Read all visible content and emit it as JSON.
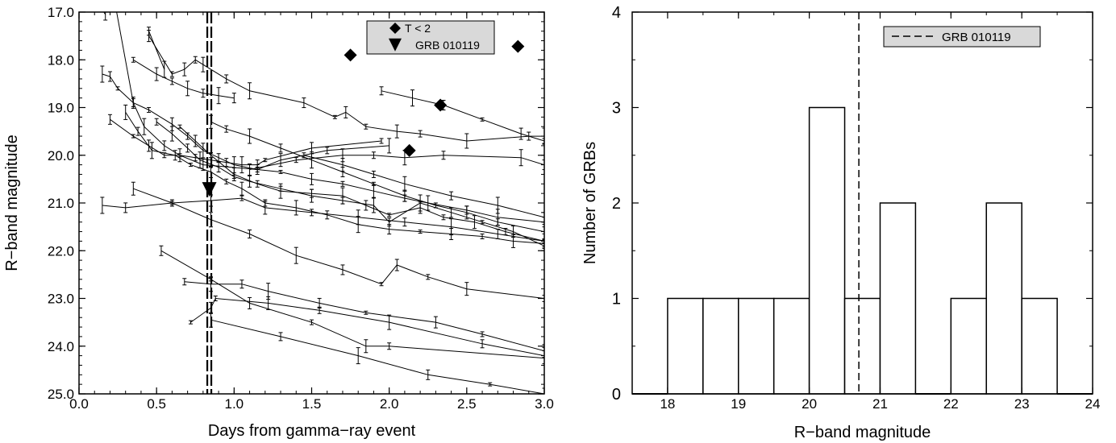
{
  "chart_data": [
    {
      "type": "line",
      "xlabel": "Days from gamma−ray event",
      "ylabel": "R−band magnitude",
      "xlim": [
        0.0,
        3.0
      ],
      "ylim": [
        17.0,
        25.0
      ],
      "y_inverted": true,
      "x_ticks": [
        "0.0",
        "0.5",
        "1.0",
        "1.5",
        "2.0",
        "2.5",
        "3.0"
      ],
      "y_ticks": [
        "17.0",
        "18.0",
        "19.0",
        "20.0",
        "21.0",
        "22.0",
        "23.0",
        "24.0",
        "25.0"
      ],
      "legend": {
        "placement": "top-right",
        "entries": [
          "T < 2",
          "GRB 010119"
        ]
      },
      "vline": {
        "x": 0.84,
        "style": "dashed",
        "label": "GRB 010119"
      },
      "series": [
        {
          "points": [
            [
              0.15,
              16.95
            ],
            [
              0.17,
              17.05
            ]
          ]
        },
        {
          "points": [
            [
              0.22,
              16.6
            ],
            [
              0.35,
              18.9
            ],
            [
              0.42,
              19.4
            ],
            [
              0.55,
              19.8
            ],
            [
              0.65,
              20.0
            ],
            [
              0.8,
              20.2
            ],
            [
              1.15,
              20.3
            ],
            [
              1.3,
              20.1
            ],
            [
              1.6,
              19.9
            ],
            [
              2.0,
              19.8
            ]
          ]
        },
        {
          "points": [
            [
              0.45,
              17.5
            ],
            [
              0.6,
              18.3
            ],
            [
              0.68,
              18.2
            ],
            [
              0.75,
              18.0
            ],
            [
              0.8,
              18.1
            ],
            [
              0.95,
              18.4
            ],
            [
              1.1,
              18.65
            ],
            [
              1.45,
              18.9
            ],
            [
              1.65,
              19.2
            ],
            [
              1.72,
              19.1
            ],
            [
              1.85,
              19.4
            ],
            [
              2.05,
              19.5
            ],
            [
              2.2,
              19.55
            ],
            [
              2.5,
              19.7
            ],
            [
              2.9,
              19.6
            ],
            [
              3.0,
              19.6
            ]
          ]
        },
        {
          "points": [
            [
              0.45,
              17.4
            ],
            [
              0.55,
              18.2
            ]
          ]
        },
        {
          "points": [
            [
              0.35,
              18.0
            ],
            [
              0.5,
              18.3
            ],
            [
              0.6,
              18.45
            ],
            [
              0.7,
              18.6
            ],
            [
              0.8,
              18.7
            ],
            [
              0.9,
              18.75
            ],
            [
              1.0,
              18.8
            ]
          ]
        },
        {
          "points": [
            [
              0.15,
              18.3
            ],
            [
              0.2,
              18.35
            ],
            [
              0.25,
              18.6
            ],
            [
              0.35,
              18.9
            ],
            [
              0.45,
              19.05
            ],
            [
              0.6,
              19.35
            ],
            [
              0.7,
              19.6
            ],
            [
              0.8,
              19.9
            ],
            [
              0.9,
              20.05
            ],
            [
              1.0,
              20.2
            ],
            [
              1.15,
              20.3
            ],
            [
              1.3,
              20.35
            ],
            [
              1.5,
              20.5
            ],
            [
              1.7,
              20.6
            ],
            [
              1.9,
              20.75
            ],
            [
              2.1,
              20.9
            ],
            [
              2.25,
              21.0
            ],
            [
              2.5,
              21.15
            ],
            [
              2.7,
              21.3
            ],
            [
              3.0,
              21.4
            ]
          ]
        },
        {
          "points": [
            [
              0.85,
              19.3
            ],
            [
              0.95,
              19.45
            ],
            [
              1.1,
              19.6
            ],
            [
              1.3,
              19.85
            ],
            [
              1.5,
              20.1
            ],
            [
              1.7,
              20.35
            ],
            [
              1.9,
              20.6
            ],
            [
              2.1,
              20.85
            ],
            [
              2.3,
              21.05
            ],
            [
              2.5,
              21.2
            ],
            [
              2.7,
              21.4
            ],
            [
              3.0,
              21.6
            ]
          ]
        },
        {
          "points": [
            [
              0.2,
              19.25
            ],
            [
              0.35,
              19.6
            ],
            [
              0.45,
              19.8
            ],
            [
              0.55,
              20.0
            ],
            [
              0.65,
              20.0
            ],
            [
              0.75,
              20.05
            ],
            [
              0.85,
              20.1
            ],
            [
              0.95,
              20.15
            ],
            [
              1.05,
              20.2
            ],
            [
              1.15,
              20.2
            ],
            [
              1.2,
              20.1
            ],
            [
              1.5,
              19.85
            ],
            [
              1.95,
              19.7
            ]
          ]
        },
        {
          "points": [
            [
              0.5,
              19.3
            ],
            [
              0.6,
              19.55
            ],
            [
              0.7,
              19.85
            ],
            [
              0.78,
              20.1
            ],
            [
              0.9,
              20.25
            ],
            [
              1.0,
              20.45
            ],
            [
              1.1,
              20.55
            ],
            [
              1.3,
              20.7
            ],
            [
              1.5,
              20.85
            ],
            [
              1.7,
              20.95
            ],
            [
              1.9,
              21.05
            ],
            [
              2.0,
              21.4
            ],
            [
              2.2,
              21.0
            ],
            [
              2.4,
              21.2
            ],
            [
              2.6,
              21.4
            ],
            [
              2.8,
              21.6
            ],
            [
              3.0,
              21.9
            ]
          ]
        },
        {
          "points": [
            [
              0.65,
              19.4
            ],
            [
              0.75,
              19.7
            ],
            [
              0.85,
              20.0
            ],
            [
              1.0,
              20.4
            ],
            [
              1.15,
              20.6
            ],
            [
              1.3,
              20.75
            ],
            [
              1.5,
              20.8
            ],
            [
              1.7,
              20.85
            ],
            [
              1.85,
              21.05
            ],
            [
              2.0,
              21.25
            ],
            [
              2.2,
              21.1
            ],
            [
              2.35,
              21.3
            ],
            [
              2.55,
              21.4
            ],
            [
              2.75,
              21.6
            ],
            [
              3.0,
              21.8
            ]
          ]
        },
        {
          "points": [
            [
              0.3,
              19.1
            ],
            [
              0.38,
              19.5
            ],
            [
              0.47,
              19.9
            ],
            [
              0.62,
              20.0
            ],
            [
              0.72,
              20.2
            ],
            [
              0.85,
              20.35
            ],
            [
              0.95,
              20.55
            ],
            [
              1.05,
              20.7
            ],
            [
              1.2,
              21.0
            ],
            [
              1.4,
              21.1
            ],
            [
              1.6,
              21.25
            ],
            [
              1.8,
              21.45
            ],
            [
              2.0,
              21.55
            ],
            [
              2.2,
              21.6
            ],
            [
              2.4,
              21.65
            ],
            [
              2.6,
              21.7
            ],
            [
              2.8,
              21.8
            ],
            [
              3.0,
              21.85
            ]
          ]
        },
        {
          "points": [
            [
              1.1,
              20.3
            ],
            [
              1.4,
              20.1
            ],
            [
              1.7,
              20.0
            ],
            [
              1.9,
              20.0
            ],
            [
              2.1,
              20.05
            ],
            [
              2.35,
              20.0
            ],
            [
              2.85,
              20.05
            ],
            [
              3.0,
              20.2
            ]
          ]
        },
        {
          "points": [
            [
              1.95,
              18.65
            ],
            [
              2.15,
              18.8
            ],
            [
              2.35,
              18.95
            ],
            [
              2.6,
              19.25
            ],
            [
              2.85,
              19.55
            ],
            [
              3.0,
              19.7
            ]
          ]
        },
        {
          "points": [
            [
              1.45,
              20.0
            ],
            [
              1.7,
              20.2
            ],
            [
              1.9,
              20.4
            ],
            [
              2.1,
              20.6
            ],
            [
              2.4,
              20.85
            ],
            [
              2.7,
              21.05
            ],
            [
              3.0,
              21.3
            ]
          ]
        },
        {
          "points": [
            [
              0.15,
              21.05
            ],
            [
              0.3,
              21.1
            ],
            [
              0.6,
              21.0
            ],
            [
              0.85,
              20.95
            ],
            [
              1.05,
              20.9
            ],
            [
              1.2,
              21.1
            ],
            [
              1.5,
              21.2
            ],
            [
              1.8,
              21.3
            ],
            [
              2.1,
              21.4
            ],
            [
              2.4,
              21.5
            ],
            [
              2.7,
              21.65
            ],
            [
              3.0,
              21.8
            ]
          ]
        },
        {
          "points": [
            [
              0.35,
              20.7
            ],
            [
              0.6,
              21.0
            ],
            [
              0.85,
              21.35
            ],
            [
              1.1,
              21.65
            ],
            [
              1.4,
              22.1
            ],
            [
              1.7,
              22.4
            ],
            [
              1.95,
              22.7
            ],
            [
              2.05,
              22.3
            ],
            [
              2.25,
              22.55
            ],
            [
              2.5,
              22.8
            ],
            [
              3.0,
              23.0
            ]
          ]
        },
        {
          "points": [
            [
              0.53,
              22.0
            ],
            [
              0.85,
              22.6
            ],
            [
              1.1,
              23.1
            ],
            [
              1.5,
              23.5
            ],
            [
              1.85,
              24.0
            ],
            [
              2.0,
              24.0
            ],
            [
              3.0,
              24.25
            ]
          ]
        },
        {
          "points": [
            [
              0.68,
              22.65
            ],
            [
              0.85,
              22.7
            ],
            [
              1.05,
              22.7
            ],
            [
              1.22,
              22.85
            ],
            [
              1.55,
              23.1
            ],
            [
              1.85,
              23.3
            ],
            [
              2.3,
              23.5
            ],
            [
              2.6,
              23.75
            ],
            [
              3.0,
              24.1
            ]
          ]
        },
        {
          "points": [
            [
              0.72,
              23.5
            ],
            [
              0.85,
              23.2
            ],
            [
              0.88,
              23.0
            ],
            [
              1.22,
              23.1
            ],
            [
              1.55,
              23.25
            ],
            [
              2.0,
              23.5
            ],
            [
              2.6,
              23.95
            ],
            [
              3.0,
              24.2
            ]
          ]
        },
        {
          "points": [
            [
              0.85,
              23.45
            ],
            [
              1.3,
              23.8
            ],
            [
              1.8,
              24.2
            ],
            [
              2.25,
              24.6
            ],
            [
              2.65,
              24.8
            ],
            [
              3.0,
              25.0
            ]
          ]
        }
      ],
      "markers": {
        "T < 2": [
          [
            1.75,
            17.9
          ],
          [
            2.33,
            18.95
          ],
          [
            2.13,
            19.9
          ],
          [
            2.83,
            17.72
          ]
        ],
        "GRB 010119": [
          [
            0.84,
            20.7
          ]
        ]
      }
    },
    {
      "type": "bar",
      "xlabel": "R−band magnitude",
      "ylabel": "Number of GRBs",
      "xlim": [
        17.5,
        24.0
      ],
      "ylim": [
        0,
        4
      ],
      "x_ticks": [
        "18",
        "19",
        "20",
        "21",
        "22",
        "23",
        "24"
      ],
      "y_ticks": [
        "0",
        "1",
        "2",
        "3",
        "4"
      ],
      "bin_width": 0.5,
      "bin_starts": [
        17.5,
        18.0,
        18.5,
        19.0,
        19.5,
        20.0,
        20.5,
        21.0,
        21.5,
        22.0,
        22.5,
        23.0,
        23.5
      ],
      "values": [
        0,
        1,
        1,
        1,
        1,
        3,
        1,
        2,
        0,
        1,
        2,
        1,
        0
      ],
      "legend": {
        "placement": "top-right",
        "entries": [
          "GRB 010119"
        ]
      },
      "vline": {
        "x": 20.7,
        "style": "dashed",
        "label": "GRB 010119"
      }
    }
  ]
}
